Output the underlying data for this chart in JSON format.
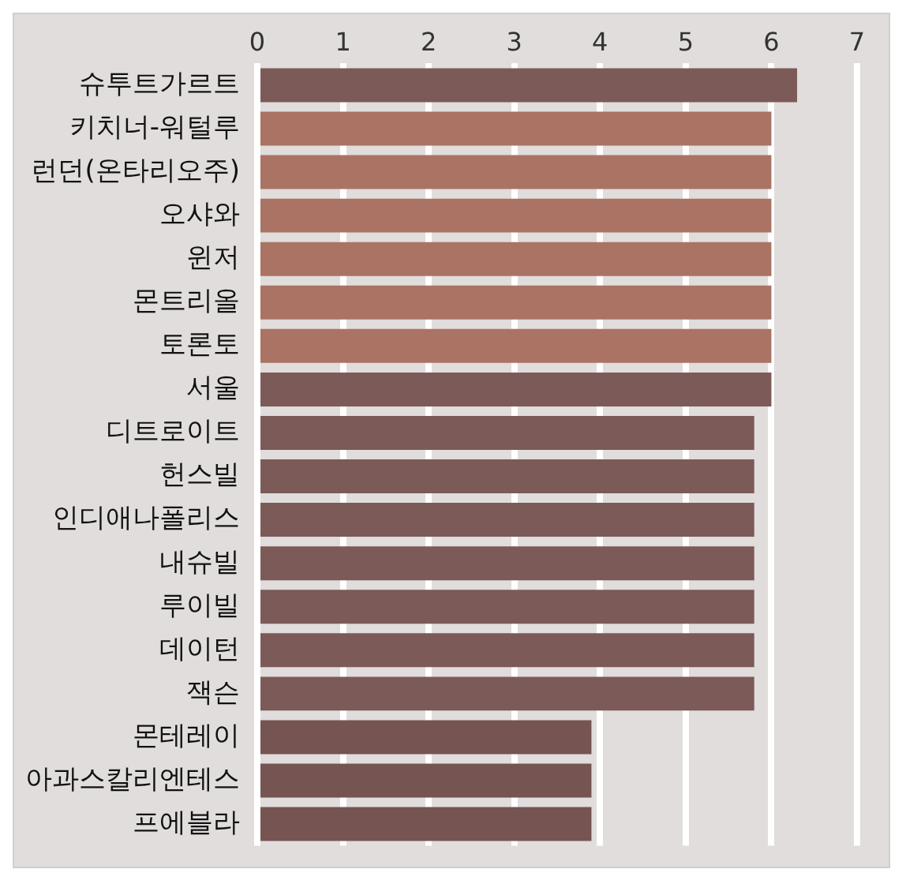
{
  "chart_data": {
    "type": "bar",
    "orientation": "horizontal",
    "categories": [
      "슈투트가르트",
      "키치너-워털루",
      "런던(온타리오주)",
      "오샤와",
      "윈저",
      "몬트리올",
      "토론토",
      "서울",
      "디트로이트",
      "헌스빌",
      "인디애나폴리스",
      "내슈빌",
      "루이빌",
      "데이턴",
      "잭슨",
      "몬테레이",
      "아과스칼리엔테스",
      "프에블라"
    ],
    "values": [
      6.3,
      6.0,
      6.0,
      6.0,
      6.0,
      6.0,
      6.0,
      6.0,
      5.8,
      5.8,
      5.8,
      5.8,
      5.8,
      5.8,
      5.8,
      3.9,
      3.9,
      3.9
    ],
    "colors": [
      "#7c5a58",
      "#aa7363",
      "#aa7363",
      "#aa7363",
      "#aa7363",
      "#aa7363",
      "#aa7363",
      "#7c5a58",
      "#7c5a58",
      "#7c5a58",
      "#7c5a58",
      "#7c5a58",
      "#7c5a58",
      "#7c5a58",
      "#7c5a58",
      "#765452",
      "#765452",
      "#765452"
    ],
    "xlim": [
      0,
      7
    ],
    "xticks": [
      0,
      1,
      2,
      3,
      4,
      5,
      6,
      7
    ],
    "grid": "x"
  }
}
